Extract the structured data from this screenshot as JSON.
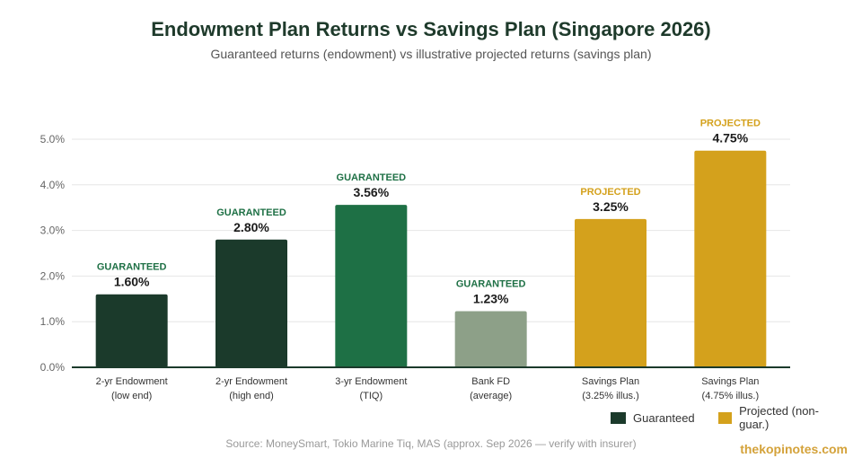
{
  "chart_data": {
    "type": "bar",
    "title": "Endowment Plan Returns vs Savings Plan (Singapore 2026)",
    "subtitle": "Guaranteed returns (endowment) vs illustrative projected returns (savings plan)",
    "xlabel": "",
    "ylabel": "",
    "ylim": [
      0,
      5
    ],
    "yticks": [
      "0.0%",
      "1.0%",
      "2.0%",
      "3.0%",
      "4.0%",
      "5.0%"
    ],
    "grid": true,
    "legend_position": "bottom-right",
    "categories": [
      {
        "line1": "2-yr Endowment",
        "line2": "(low end)"
      },
      {
        "line1": "2-yr Endowment",
        "line2": "(high end)"
      },
      {
        "line1": "3-yr Endowment",
        "line2": "(TIQ)"
      },
      {
        "line1": "Bank FD",
        "line2": "(average)"
      },
      {
        "line1": "Savings Plan",
        "line2": "(3.25% illus.)"
      },
      {
        "line1": "Savings Plan",
        "line2": "(4.75% illus.)"
      }
    ],
    "values": [
      1.6,
      2.8,
      3.56,
      1.23,
      3.25,
      4.75
    ],
    "value_labels": [
      "1.60%",
      "2.80%",
      "3.56%",
      "1.23%",
      "3.25%",
      "4.75%"
    ],
    "tags": [
      "GUARANTEED",
      "GUARANTEED",
      "GUARANTEED",
      "GUARANTEED",
      "PROJECTED",
      "PROJECTED"
    ],
    "bar_colors": [
      "#1b3a2b",
      "#1b3a2b",
      "#1e7045",
      "#8da088",
      "#d4a11c",
      "#d4a11c"
    ],
    "tag_colors": [
      "#1e7045",
      "#1e7045",
      "#1e7045",
      "#1e7045",
      "#d4a11c",
      "#d4a11c"
    ],
    "legend": [
      {
        "label": "Guaranteed",
        "color": "#1b3a2b"
      },
      {
        "label": "Projected (non-guar.)",
        "color": "#d4a11c"
      }
    ]
  },
  "footer": {
    "source": "Source: MoneySmart, Tokio Marine Tiq, MAS (approx. Sep 2026 — verify with insurer)",
    "watermark": "thekopinotes.com"
  }
}
